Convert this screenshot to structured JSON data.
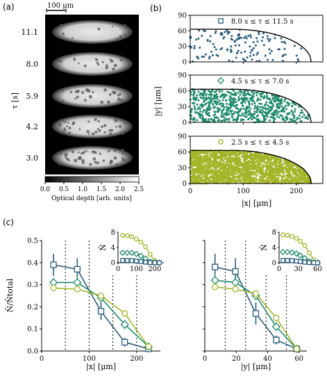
{
  "panel_labels": [
    "(a)",
    "(b)",
    "(c)"
  ],
  "colors": {
    "s1": "#2a5c7a",
    "s2": "#1e8a6c",
    "s3": "#a4b529"
  },
  "panel_a": {
    "scale_bar_label": "100 μm",
    "ylabel": "τ [s]",
    "tau_labels": [
      "11.1",
      "8.0",
      "5.9",
      "4.2",
      "3.0"
    ],
    "colorbar_ticks": [
      "0.0",
      "0.5",
      "1.0",
      "1.5",
      "2.0",
      "2.5"
    ],
    "colorbar_label": "Optical depth [arb. units]"
  },
  "chart_data": [
    {
      "type": "scatter",
      "panel": "b-top",
      "legend": "8.0 s ≤ τ ≤ 11.5 s",
      "marker": "square",
      "xlim": [
        0,
        250
      ],
      "ylim": [
        0,
        90
      ],
      "xticks": [
        0,
        100,
        200
      ],
      "yticks": [
        0,
        30,
        60,
        90
      ],
      "boundary": {
        "a": 228,
        "b": 63,
        "flat_until": 80
      },
      "n_points": 140
    },
    {
      "type": "scatter",
      "panel": "b-mid",
      "legend": "4.5 s ≤ τ ≤ 7.0 s",
      "marker": "diamond",
      "xlim": [
        0,
        250
      ],
      "ylim": [
        0,
        90
      ],
      "yticks": [
        0,
        30,
        60,
        90
      ],
      "n_points": 700
    },
    {
      "type": "scatter",
      "panel": "b-bot",
      "legend": "2.5 s ≤ τ ≤ 4.5 s",
      "marker": "circle",
      "xlim": [
        0,
        250
      ],
      "ylim": [
        0,
        90
      ],
      "xticks": [
        0,
        100,
        200
      ],
      "yticks": [
        0,
        30,
        60,
        90
      ],
      "xlabel": "|x| [μm]",
      "n_points": 2200
    },
    {
      "type": "line",
      "panel": "c-left",
      "xlabel": "|x| [μm]",
      "ylabel": "N̄/N̄total",
      "xlim": [
        0,
        250
      ],
      "ylim": [
        0,
        0.5
      ],
      "xticks": [
        0,
        100,
        200
      ],
      "yticks": [
        0.0,
        0.1,
        0.2,
        0.3,
        0.4,
        0.5
      ],
      "vlines": [
        50,
        100,
        150,
        200
      ],
      "series": [
        {
          "marker": "square",
          "x": [
            25,
            75,
            125,
            175,
            225
          ],
          "y": [
            0.39,
            0.37,
            0.18,
            0.04,
            0.01
          ],
          "err": [
            0.05,
            0.05,
            0.04,
            0.02,
            0.01
          ]
        },
        {
          "marker": "diamond",
          "x": [
            25,
            75,
            125,
            175,
            225
          ],
          "y": [
            0.31,
            0.31,
            0.24,
            0.12,
            0.02
          ],
          "err": [
            0.02,
            0.03,
            0.02,
            0.02,
            0.01
          ]
        },
        {
          "marker": "circle",
          "x": [
            25,
            75,
            125,
            175,
            225
          ],
          "y": [
            0.285,
            0.28,
            0.25,
            0.17,
            0.02
          ],
          "err": [
            0.01,
            0.01,
            0.01,
            0.01,
            0.005
          ]
        }
      ]
    },
    {
      "type": "line",
      "panel": "c-left-inset",
      "ylabel": "N̄",
      "xlim": [
        0,
        250
      ],
      "ylim": [
        0,
        8
      ],
      "xticks": [
        0,
        100,
        200
      ],
      "yticks": [
        0,
        4,
        8
      ],
      "series": [
        {
          "marker": "circle",
          "x": [
            25,
            50,
            75,
            100,
            125,
            150,
            175,
            200,
            225
          ],
          "y": [
            7.2,
            7.1,
            6.8,
            6.2,
            5.4,
            4.2,
            2.2,
            0.6,
            0.1
          ]
        },
        {
          "marker": "diamond",
          "x": [
            25,
            50,
            75,
            100,
            125,
            150,
            175,
            200,
            225
          ],
          "y": [
            2.6,
            2.6,
            2.6,
            2.3,
            1.8,
            1.1,
            0.3,
            0.1,
            0.05
          ]
        },
        {
          "marker": "square",
          "x": [
            25,
            50,
            75,
            100,
            125,
            150,
            175,
            200,
            225
          ],
          "y": [
            0.6,
            0.6,
            0.55,
            0.45,
            0.3,
            0.15,
            0.05,
            0.02,
            0.01
          ]
        }
      ]
    },
    {
      "type": "line",
      "panel": "c-right",
      "xlabel": "|y| [μm]",
      "xlim": [
        0,
        65
      ],
      "ylim": [
        0,
        0.5
      ],
      "xticks": [
        0,
        20,
        40,
        60
      ],
      "vlines": [
        13,
        26,
        39,
        52
      ],
      "series": [
        {
          "marker": "square",
          "x": [
            6.5,
            19.5,
            32.5,
            45.5,
            58.5
          ],
          "y": [
            0.38,
            0.36,
            0.17,
            0.05,
            0.01
          ],
          "err": [
            0.06,
            0.06,
            0.05,
            0.02,
            0.01
          ]
        },
        {
          "marker": "diamond",
          "x": [
            6.5,
            19.5,
            32.5,
            45.5,
            58.5
          ],
          "y": [
            0.32,
            0.31,
            0.25,
            0.11,
            0.01
          ],
          "err": [
            0.03,
            0.03,
            0.02,
            0.02,
            0.01
          ]
        },
        {
          "marker": "circle",
          "x": [
            6.5,
            19.5,
            32.5,
            45.5,
            58.5
          ],
          "y": [
            0.29,
            0.28,
            0.26,
            0.15,
            0.01
          ],
          "err": [
            0.01,
            0.01,
            0.01,
            0.01,
            0.005
          ]
        }
      ]
    },
    {
      "type": "line",
      "panel": "c-right-inset",
      "ylabel": "N̄",
      "xlim": [
        0,
        65
      ],
      "ylim": [
        0,
        8
      ],
      "xticks": [
        0,
        30,
        60
      ],
      "yticks": [
        0,
        4,
        8
      ],
      "series": [
        {
          "marker": "circle",
          "x": [
            6,
            13,
            20,
            27,
            33,
            40,
            47,
            54,
            60
          ],
          "y": [
            7.3,
            7.2,
            6.9,
            6.4,
            5.6,
            4.5,
            2.6,
            0.8,
            0.1
          ]
        },
        {
          "marker": "diamond",
          "x": [
            6,
            13,
            20,
            27,
            33,
            40,
            47,
            54,
            60
          ],
          "y": [
            2.8,
            2.8,
            2.7,
            2.4,
            1.9,
            1.2,
            0.4,
            0.1,
            0.05
          ]
        },
        {
          "marker": "square",
          "x": [
            6,
            13,
            20,
            27,
            33,
            40,
            47,
            54,
            60
          ],
          "y": [
            0.6,
            0.6,
            0.55,
            0.45,
            0.3,
            0.15,
            0.05,
            0.02,
            0.01
          ]
        }
      ]
    }
  ]
}
